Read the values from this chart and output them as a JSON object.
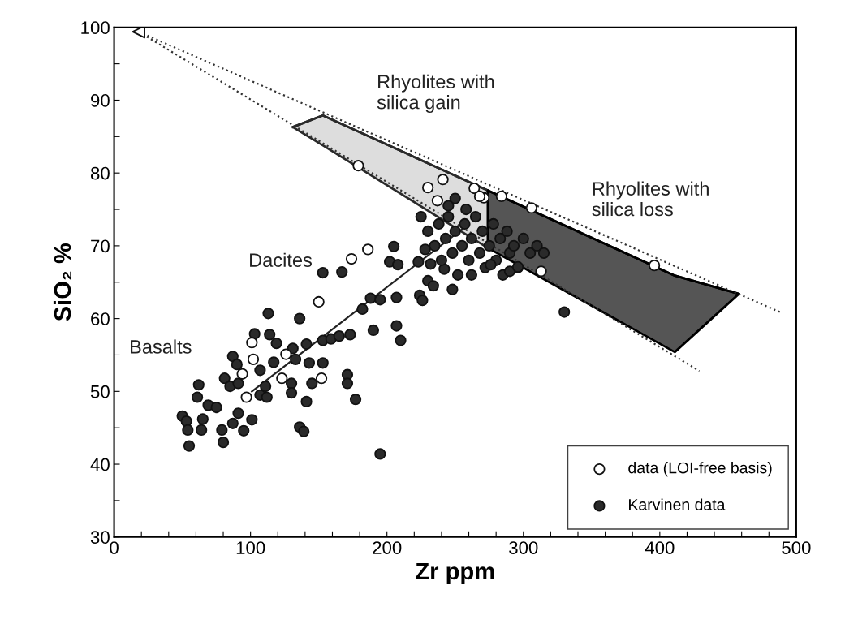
{
  "chart_data": {
    "type": "scatter",
    "xlabel": "Zr ppm",
    "ylabel": "SiO₂ %",
    "xlim": [
      0,
      500
    ],
    "ylim": [
      30,
      100
    ],
    "xticks": [
      0,
      {
        "value": 20,
        "label": null
      },
      {
        "value": 40,
        "label": null
      },
      {
        "value": 60,
        "label": null
      },
      {
        "value": 80,
        "label": null
      },
      100,
      {
        "value": 120,
        "label": null
      },
      {
        "value": 140,
        "label": null
      },
      {
        "value": 160,
        "label": null
      },
      {
        "value": 180,
        "label": null
      },
      200,
      {
        "value": 220,
        "label": null
      },
      {
        "value": 240,
        "label": null
      },
      {
        "value": 260,
        "label": null
      },
      {
        "value": 280,
        "label": null
      },
      300,
      {
        "value": 320,
        "label": null
      },
      {
        "value": 340,
        "label": null
      },
      {
        "value": 360,
        "label": null
      },
      {
        "value": 380,
        "label": null
      },
      400,
      {
        "value": 420,
        "label": null
      },
      {
        "value": 440,
        "label": null
      },
      {
        "value": 460,
        "label": null
      },
      {
        "value": 480,
        "label": null
      },
      500
    ],
    "yticks": [
      30,
      {
        "value": 35,
        "label": null
      },
      40,
      {
        "value": 45,
        "label": null
      },
      50,
      {
        "value": 55,
        "label": null
      },
      60,
      {
        "value": 65,
        "label": null
      },
      70,
      {
        "value": 75,
        "label": null
      },
      80,
      {
        "value": 85,
        "label": null
      },
      90,
      {
        "value": 95,
        "label": null
      },
      100
    ],
    "grid": false,
    "legend": "bottom right",
    "series": [
      {
        "type": "line",
        "color": "#2a2a2a",
        "colors": [
          "#dddddd",
          "#dddddd",
          "#dddddd"
        ],
        "x": [
          131,
          153,
          274
        ],
        "lower": [
          86.3,
          83.8,
          69.7
        ],
        "upper": [
          86.3,
          87.9,
          77.6
        ],
        "values": [
          86.3,
          87.9,
          77.6
        ]
      },
      {
        "type": "line",
        "color": "#000000",
        "colors": [
          "#555555",
          "#555555",
          "#555555"
        ],
        "x": [
          274,
          411,
          458
        ],
        "lower": [
          69.7,
          55.4,
          63.4
        ],
        "upper": [
          77.6,
          65.9,
          63.4
        ],
        "values": [
          77.6,
          65.9,
          63.4
        ]
      },
      {
        "type": "line",
        "line_style": "dotted",
        "color": "#333333",
        "x": [
          18,
          488
        ],
        "values": [
          99.4,
          60.9
        ]
      },
      {
        "type": "line",
        "line_style": "dotted",
        "color": "#333333",
        "x": [
          18,
          429
        ],
        "values": [
          99.4,
          52.8
        ]
      },
      {
        "type": "line",
        "line_style": "solid",
        "color": "#222222",
        "x": [
          101,
          260
        ],
        "values": [
          50.0,
          73.0
        ]
      },
      {
        "marker": "triangle",
        "color": "#ffffff",
        "x": [
          18
        ],
        "values": [
          99.4
        ]
      },
      {
        "marker": "circle",
        "name": "Karvinen data",
        "color": "#2a2a2a",
        "x": [
          153,
          167,
          113,
          136,
          103,
          114,
          119,
          87,
          90,
          81,
          85,
          62,
          61,
          69,
          50,
          53,
          54,
          55,
          65,
          64,
          79,
          80,
          75,
          87,
          95,
          101,
          91,
          107,
          112,
          111,
          117,
          91,
          107,
          131,
          133,
          130,
          130,
          141,
          141,
          136,
          139,
          143,
          153,
          145,
          153,
          159,
          165,
          173,
          171,
          171,
          177,
          190,
          195,
          182,
          188,
          195,
          207,
          207,
          210,
          224,
          230,
          234,
          242,
          205,
          202,
          208,
          223,
          225,
          230,
          235,
          238,
          240,
          243,
          245,
          248,
          250,
          252,
          255,
          257,
          260,
          262,
          265,
          268,
          270,
          272,
          275,
          278,
          280,
          283,
          285,
          288,
          290,
          293,
          296,
          300,
          305,
          310,
          245,
          258,
          232,
          228,
          250,
          262,
          290,
          315,
          248,
          226,
          330,
          296,
          276
        ],
        "values": [
          66.3,
          66.4,
          60.7,
          60.0,
          57.9,
          57.8,
          56.6,
          54.8,
          53.7,
          51.8,
          50.7,
          50.9,
          49.2,
          48.1,
          46.6,
          45.9,
          44.7,
          42.5,
          46.2,
          44.7,
          44.7,
          43.0,
          47.8,
          45.6,
          44.6,
          46.1,
          47.0,
          49.5,
          49.2,
          50.7,
          54.0,
          51.1,
          52.9,
          55.9,
          54.4,
          51.1,
          49.8,
          56.5,
          48.6,
          45.1,
          44.5,
          53.9,
          53.9,
          51.1,
          57.0,
          57.2,
          57.6,
          57.8,
          52.3,
          51.1,
          48.9,
          58.4,
          41.4,
          61.3,
          62.8,
          62.6,
          62.9,
          59.0,
          57.0,
          63.2,
          65.2,
          64.5,
          66.8,
          69.9,
          67.8,
          67.4,
          67.8,
          74,
          72,
          70,
          73,
          68,
          71,
          74,
          69,
          72,
          66,
          70,
          73,
          68,
          71,
          74,
          69,
          72,
          67,
          70,
          73,
          68,
          71,
          66,
          72,
          69,
          70,
          67,
          71,
          69,
          70,
          75.5,
          75,
          67.5,
          69.5,
          76.5,
          66,
          66.5,
          69,
          64,
          62.5,
          60.9,
          67.1,
          67.4
        ]
      },
      {
        "marker": "circle",
        "name": "data (LOI-free basis)",
        "color": "#ffffff",
        "x": [
          179,
          230,
          241,
          237,
          264,
          271,
          268,
          284,
          306,
          313,
          396,
          174,
          186,
          150,
          101,
          102,
          94,
          97,
          126,
          123,
          152
        ],
        "values": [
          81.0,
          78.0,
          79.1,
          76.2,
          77.9,
          76.6,
          76.8,
          76.8,
          75.2,
          66.5,
          67.3,
          68.2,
          69.5,
          62.3,
          56.7,
          54.4,
          52.4,
          49.2,
          55.1,
          51.8,
          51.8
        ]
      }
    ],
    "annotations": [
      "Rhyolites with\nsilica gain",
      "Rhyolites with\nsilica loss",
      "Dacites",
      "Basalts"
    ]
  }
}
